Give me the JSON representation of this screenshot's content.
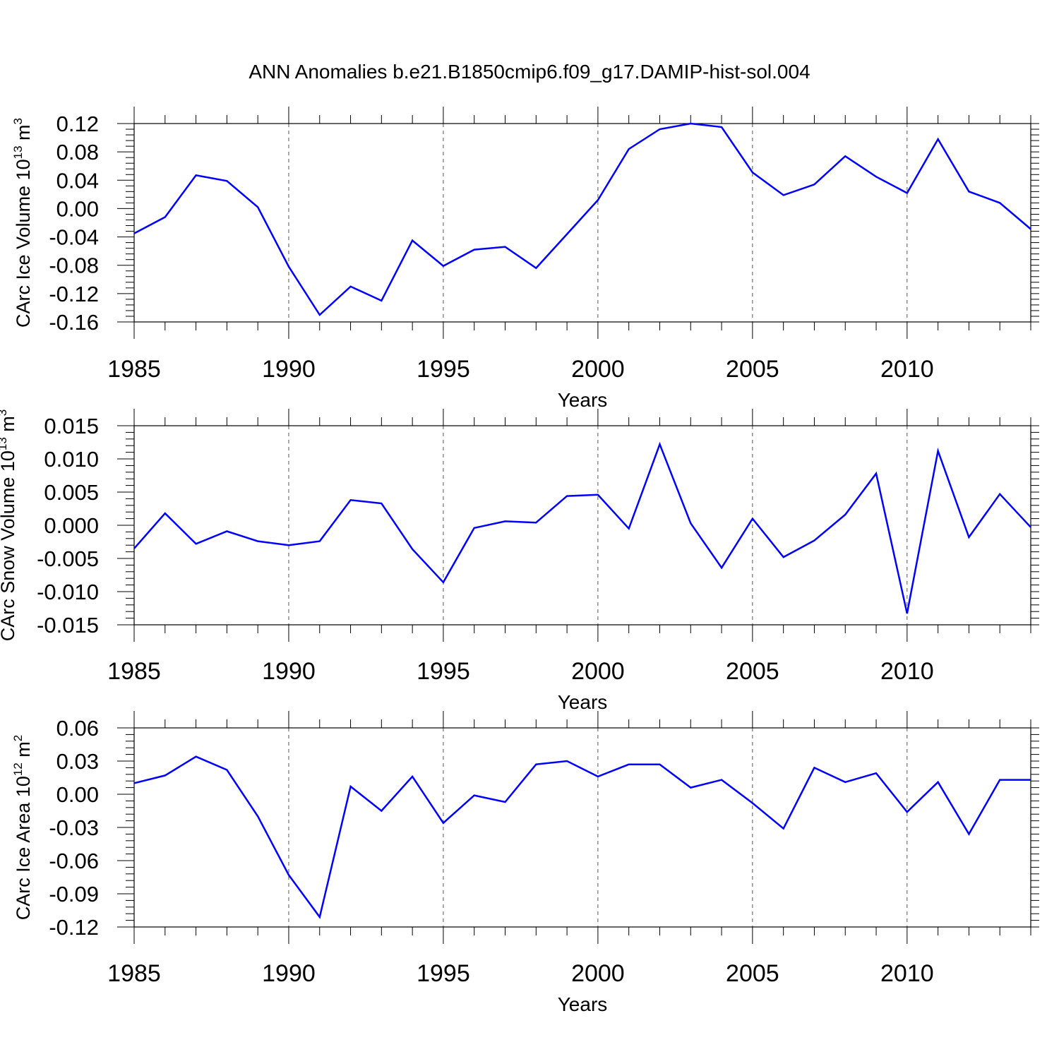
{
  "title": "ANN Anomalies b.e21.B1850cmip6.f09_g17.DAMIP-hist-sol.004",
  "line_color": "#0000ff",
  "chart_data": [
    {
      "type": "line",
      "title": "",
      "xlabel": "Years",
      "ylabel": "CArc Ice Volume 10",
      "ylabel_sup": "13",
      "ylabel_unit": "m",
      "ylabel_unit_sup": "3",
      "xlim": [
        1985,
        2014
      ],
      "ylim": [
        -0.16,
        0.12
      ],
      "xticks": [
        1985,
        1990,
        1995,
        2000,
        2005,
        2010
      ],
      "xtick_labels": [
        "1985",
        "1990",
        "1995",
        "2000",
        "2005",
        "2010"
      ],
      "yticks": [
        -0.16,
        -0.12,
        -0.08,
        -0.04,
        0.0,
        0.04,
        0.08,
        0.12
      ],
      "ytick_labels": [
        "-0.16",
        "-0.12",
        "-0.08",
        "-0.04",
        "0.00",
        "0.04",
        "0.08",
        "0.12"
      ],
      "series": [
        {
          "name": "CArc Ice Volume",
          "x": [
            1985,
            1986,
            1987,
            1988,
            1989,
            1990,
            1991,
            1992,
            1993,
            1994,
            1995,
            1996,
            1997,
            1998,
            1999,
            2000,
            2001,
            2002,
            2003,
            2004,
            2005,
            2006,
            2007,
            2008,
            2009,
            2010,
            2011,
            2012,
            2013,
            2014
          ],
          "values": [
            -0.035,
            -0.012,
            0.047,
            0.039,
            0.002,
            -0.082,
            -0.15,
            -0.11,
            -0.13,
            -0.045,
            -0.081,
            -0.058,
            -0.054,
            -0.084,
            -0.036,
            0.012,
            0.084,
            0.112,
            0.12,
            0.115,
            0.051,
            0.019,
            0.034,
            0.074,
            0.045,
            0.022,
            0.098,
            0.024,
            0.008,
            -0.029
          ]
        }
      ]
    },
    {
      "type": "line",
      "title": "",
      "xlabel": "Years",
      "ylabel": "CArc Snow Volume 10",
      "ylabel_sup": "13",
      "ylabel_unit": "m",
      "ylabel_unit_sup": "3",
      "xlim": [
        1985,
        2014
      ],
      "ylim": [
        -0.015,
        0.015
      ],
      "xticks": [
        1985,
        1990,
        1995,
        2000,
        2005,
        2010
      ],
      "xtick_labels": [
        "1985",
        "1990",
        "1995",
        "2000",
        "2005",
        "2010"
      ],
      "yticks": [
        -0.015,
        -0.01,
        -0.005,
        0.0,
        0.005,
        0.01,
        0.015
      ],
      "ytick_labels": [
        "-0.015",
        "-0.010",
        "-0.005",
        "0.000",
        "0.005",
        "0.010",
        "0.015"
      ],
      "series": [
        {
          "name": "CArc Snow Volume",
          "x": [
            1985,
            1986,
            1987,
            1988,
            1989,
            1990,
            1991,
            1992,
            1993,
            1994,
            1995,
            1996,
            1997,
            1998,
            1999,
            2000,
            2001,
            2002,
            2003,
            2004,
            2005,
            2006,
            2007,
            2008,
            2009,
            2010,
            2011,
            2012,
            2013,
            2014
          ],
          "values": [
            -0.0035,
            0.0018,
            -0.0028,
            -0.0009,
            -0.0024,
            -0.003,
            -0.0024,
            0.0038,
            0.0033,
            -0.0036,
            -0.0086,
            -0.0004,
            0.0006,
            0.0004,
            0.0044,
            0.0046,
            -0.0005,
            0.0122,
            0.0003,
            -0.0064,
            0.001,
            -0.0048,
            -0.0023,
            0.0016,
            0.0078,
            -0.0133,
            0.0112,
            -0.0018,
            0.0047,
            -0.0003
          ]
        }
      ]
    },
    {
      "type": "line",
      "title": "",
      "xlabel": "Years",
      "ylabel": "CArc Ice Area 10",
      "ylabel_sup": "12",
      "ylabel_unit": "m",
      "ylabel_unit_sup": "2",
      "xlim": [
        1985,
        2014
      ],
      "ylim": [
        -0.12,
        0.06
      ],
      "xticks": [
        1985,
        1990,
        1995,
        2000,
        2005,
        2010
      ],
      "xtick_labels": [
        "1985",
        "1990",
        "1995",
        "2000",
        "2005",
        "2010"
      ],
      "yticks": [
        -0.12,
        -0.09,
        -0.06,
        -0.03,
        0.0,
        0.03,
        0.06
      ],
      "ytick_labels": [
        "-0.12",
        "-0.09",
        "-0.06",
        "-0.03",
        "0.00",
        "0.03",
        "0.06"
      ],
      "series": [
        {
          "name": "CArc Ice Area",
          "x": [
            1985,
            1986,
            1987,
            1988,
            1989,
            1990,
            1991,
            1992,
            1993,
            1994,
            1995,
            1996,
            1997,
            1998,
            1999,
            2000,
            2001,
            2002,
            2003,
            2004,
            2005,
            2006,
            2007,
            2008,
            2009,
            2010,
            2011,
            2012,
            2013,
            2014
          ],
          "values": [
            0.01,
            0.017,
            0.034,
            0.022,
            -0.02,
            -0.073,
            -0.111,
            0.007,
            -0.015,
            0.016,
            -0.026,
            -0.001,
            -0.007,
            0.027,
            0.03,
            0.016,
            0.027,
            0.027,
            0.006,
            0.013,
            -0.008,
            -0.031,
            0.024,
            0.011,
            0.019,
            -0.016,
            0.011,
            -0.036,
            0.013,
            0.013
          ]
        }
      ]
    }
  ]
}
